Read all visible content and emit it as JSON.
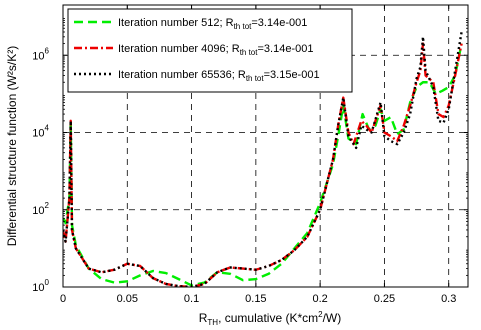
{
  "chart_data": {
    "type": "line",
    "xlabel": "R",
    "xlabel_sub": "TH",
    "xlabel_rest": ", cumulative (K*cm",
    "xlabel_sup": "2",
    "xlabel_end": "/W)",
    "ylabel": "Differential structure function (W²s/K²)",
    "y_scale": "log",
    "xlim": [
      0,
      0.315
    ],
    "ylim": [
      1,
      20000000
    ],
    "grid": true,
    "legend_position": "top-left",
    "x_ticks": [
      {
        "value": 0,
        "label": "0"
      },
      {
        "value": 0.05,
        "label": "0.05"
      },
      {
        "value": 0.1,
        "label": "0.1"
      },
      {
        "value": 0.15,
        "label": "0.15"
      },
      {
        "value": 0.2,
        "label": "0.2"
      },
      {
        "value": 0.25,
        "label": "0.25"
      },
      {
        "value": 0.3,
        "label": "0.3"
      }
    ],
    "y_ticks": [
      {
        "value": 1,
        "base": "10",
        "exp": "0"
      },
      {
        "value": 100,
        "base": "10",
        "exp": "2"
      },
      {
        "value": 10000,
        "base": "10",
        "exp": "4"
      },
      {
        "value": 1000000,
        "base": "10",
        "exp": "6"
      }
    ],
    "series": [
      {
        "name": "Iteration number 512; R",
        "name_sub": "th tot",
        "name_end": "=3.14e-001",
        "color": "#00ee00",
        "dash": "9,5",
        "points": [
          [
            0.0,
            60
          ],
          [
            0.002,
            45
          ],
          [
            0.005,
            200
          ],
          [
            0.006,
            20000
          ],
          [
            0.007,
            40
          ],
          [
            0.01,
            12
          ],
          [
            0.02,
            3
          ],
          [
            0.03,
            1.6
          ],
          [
            0.04,
            1.3
          ],
          [
            0.05,
            1.4
          ],
          [
            0.06,
            2.0
          ],
          [
            0.07,
            2.6
          ],
          [
            0.08,
            2.3
          ],
          [
            0.09,
            1.6
          ],
          [
            0.1,
            1.1
          ],
          [
            0.11,
            1.3
          ],
          [
            0.12,
            2.4
          ],
          [
            0.13,
            2.2
          ],
          [
            0.14,
            1.5
          ],
          [
            0.15,
            1.6
          ],
          [
            0.16,
            2.2
          ],
          [
            0.17,
            4
          ],
          [
            0.18,
            10
          ],
          [
            0.19,
            25
          ],
          [
            0.2,
            150
          ],
          [
            0.21,
            1500
          ],
          [
            0.214,
            8000
          ],
          [
            0.218,
            50000
          ],
          [
            0.222,
            7000
          ],
          [
            0.228,
            5000
          ],
          [
            0.233,
            30000
          ],
          [
            0.238,
            12000
          ],
          [
            0.243,
            15000
          ],
          [
            0.247,
            40000
          ],
          [
            0.25,
            20000
          ],
          [
            0.255,
            25000
          ],
          [
            0.26,
            9000
          ],
          [
            0.265,
            12000
          ],
          [
            0.27,
            60000
          ],
          [
            0.275,
            150000
          ],
          [
            0.28,
            200000
          ],
          [
            0.285,
            200000
          ],
          [
            0.29,
            100000
          ],
          [
            0.295,
            120000
          ],
          [
            0.3,
            150000
          ],
          [
            0.305,
            300000
          ],
          [
            0.31,
            2000000
          ]
        ]
      },
      {
        "name": "Iteration number 4096; R",
        "name_sub": "th tot",
        "name_end": "=3.14e-001",
        "color": "#ee0000",
        "dash": "8,3,2,3",
        "points": [
          [
            0.0,
            30
          ],
          [
            0.002,
            15
          ],
          [
            0.005,
            200
          ],
          [
            0.006,
            20000
          ],
          [
            0.007,
            30
          ],
          [
            0.01,
            10
          ],
          [
            0.02,
            3
          ],
          [
            0.03,
            2.4
          ],
          [
            0.04,
            2.8
          ],
          [
            0.05,
            4
          ],
          [
            0.06,
            3.5
          ],
          [
            0.07,
            1.7
          ],
          [
            0.08,
            1.2
          ],
          [
            0.09,
            1.05
          ],
          [
            0.1,
            1.0
          ],
          [
            0.11,
            1.2
          ],
          [
            0.12,
            2.4
          ],
          [
            0.13,
            3.2
          ],
          [
            0.14,
            3.0
          ],
          [
            0.15,
            2.8
          ],
          [
            0.16,
            3.5
          ],
          [
            0.17,
            5
          ],
          [
            0.18,
            9
          ],
          [
            0.19,
            20
          ],
          [
            0.2,
            100
          ],
          [
            0.21,
            2000
          ],
          [
            0.214,
            15000
          ],
          [
            0.218,
            80000
          ],
          [
            0.222,
            10000
          ],
          [
            0.226,
            5000
          ],
          [
            0.232,
            20000
          ],
          [
            0.236,
            15000
          ],
          [
            0.24,
            10000
          ],
          [
            0.247,
            50000
          ],
          [
            0.25,
            10000
          ],
          [
            0.255,
            8000
          ],
          [
            0.26,
            6000
          ],
          [
            0.265,
            15000
          ],
          [
            0.27,
            50000
          ],
          [
            0.275,
            200000
          ],
          [
            0.278,
            400000
          ],
          [
            0.28,
            2000000
          ],
          [
            0.282,
            300000
          ],
          [
            0.288,
            200000
          ],
          [
            0.292,
            30000
          ],
          [
            0.296,
            25000
          ],
          [
            0.3,
            50000
          ],
          [
            0.305,
            300000
          ],
          [
            0.31,
            2000000
          ]
        ]
      },
      {
        "name": "Iteration number 65536; R",
        "name_sub": "th tot",
        "name_end": "=3.15e-001",
        "color": "#000000",
        "dash": "2,3",
        "points": [
          [
            0.0,
            30
          ],
          [
            0.002,
            15
          ],
          [
            0.005,
            200
          ],
          [
            0.006,
            20000
          ],
          [
            0.007,
            30
          ],
          [
            0.01,
            10
          ],
          [
            0.02,
            3
          ],
          [
            0.03,
            2.4
          ],
          [
            0.04,
            2.8
          ],
          [
            0.05,
            4
          ],
          [
            0.06,
            3.5
          ],
          [
            0.07,
            1.7
          ],
          [
            0.08,
            1.2
          ],
          [
            0.09,
            1.05
          ],
          [
            0.1,
            1.0
          ],
          [
            0.11,
            1.2
          ],
          [
            0.12,
            2.4
          ],
          [
            0.13,
            3.2
          ],
          [
            0.14,
            3.0
          ],
          [
            0.15,
            2.8
          ],
          [
            0.16,
            3.5
          ],
          [
            0.17,
            5
          ],
          [
            0.18,
            9
          ],
          [
            0.19,
            20
          ],
          [
            0.2,
            100
          ],
          [
            0.21,
            2000
          ],
          [
            0.214,
            15000
          ],
          [
            0.218,
            80000
          ],
          [
            0.222,
            8000
          ],
          [
            0.228,
            4000
          ],
          [
            0.232,
            15000
          ],
          [
            0.236,
            12000
          ],
          [
            0.24,
            10000
          ],
          [
            0.247,
            60000
          ],
          [
            0.25,
            8000
          ],
          [
            0.255,
            6000
          ],
          [
            0.26,
            5000
          ],
          [
            0.265,
            10000
          ],
          [
            0.27,
            30000
          ],
          [
            0.275,
            250000
          ],
          [
            0.278,
            500000
          ],
          [
            0.28,
            3000000
          ],
          [
            0.282,
            400000
          ],
          [
            0.288,
            150000
          ],
          [
            0.292,
            20000
          ],
          [
            0.296,
            18000
          ],
          [
            0.3,
            40000
          ],
          [
            0.305,
            400000
          ],
          [
            0.31,
            4000000
          ]
        ]
      }
    ]
  }
}
